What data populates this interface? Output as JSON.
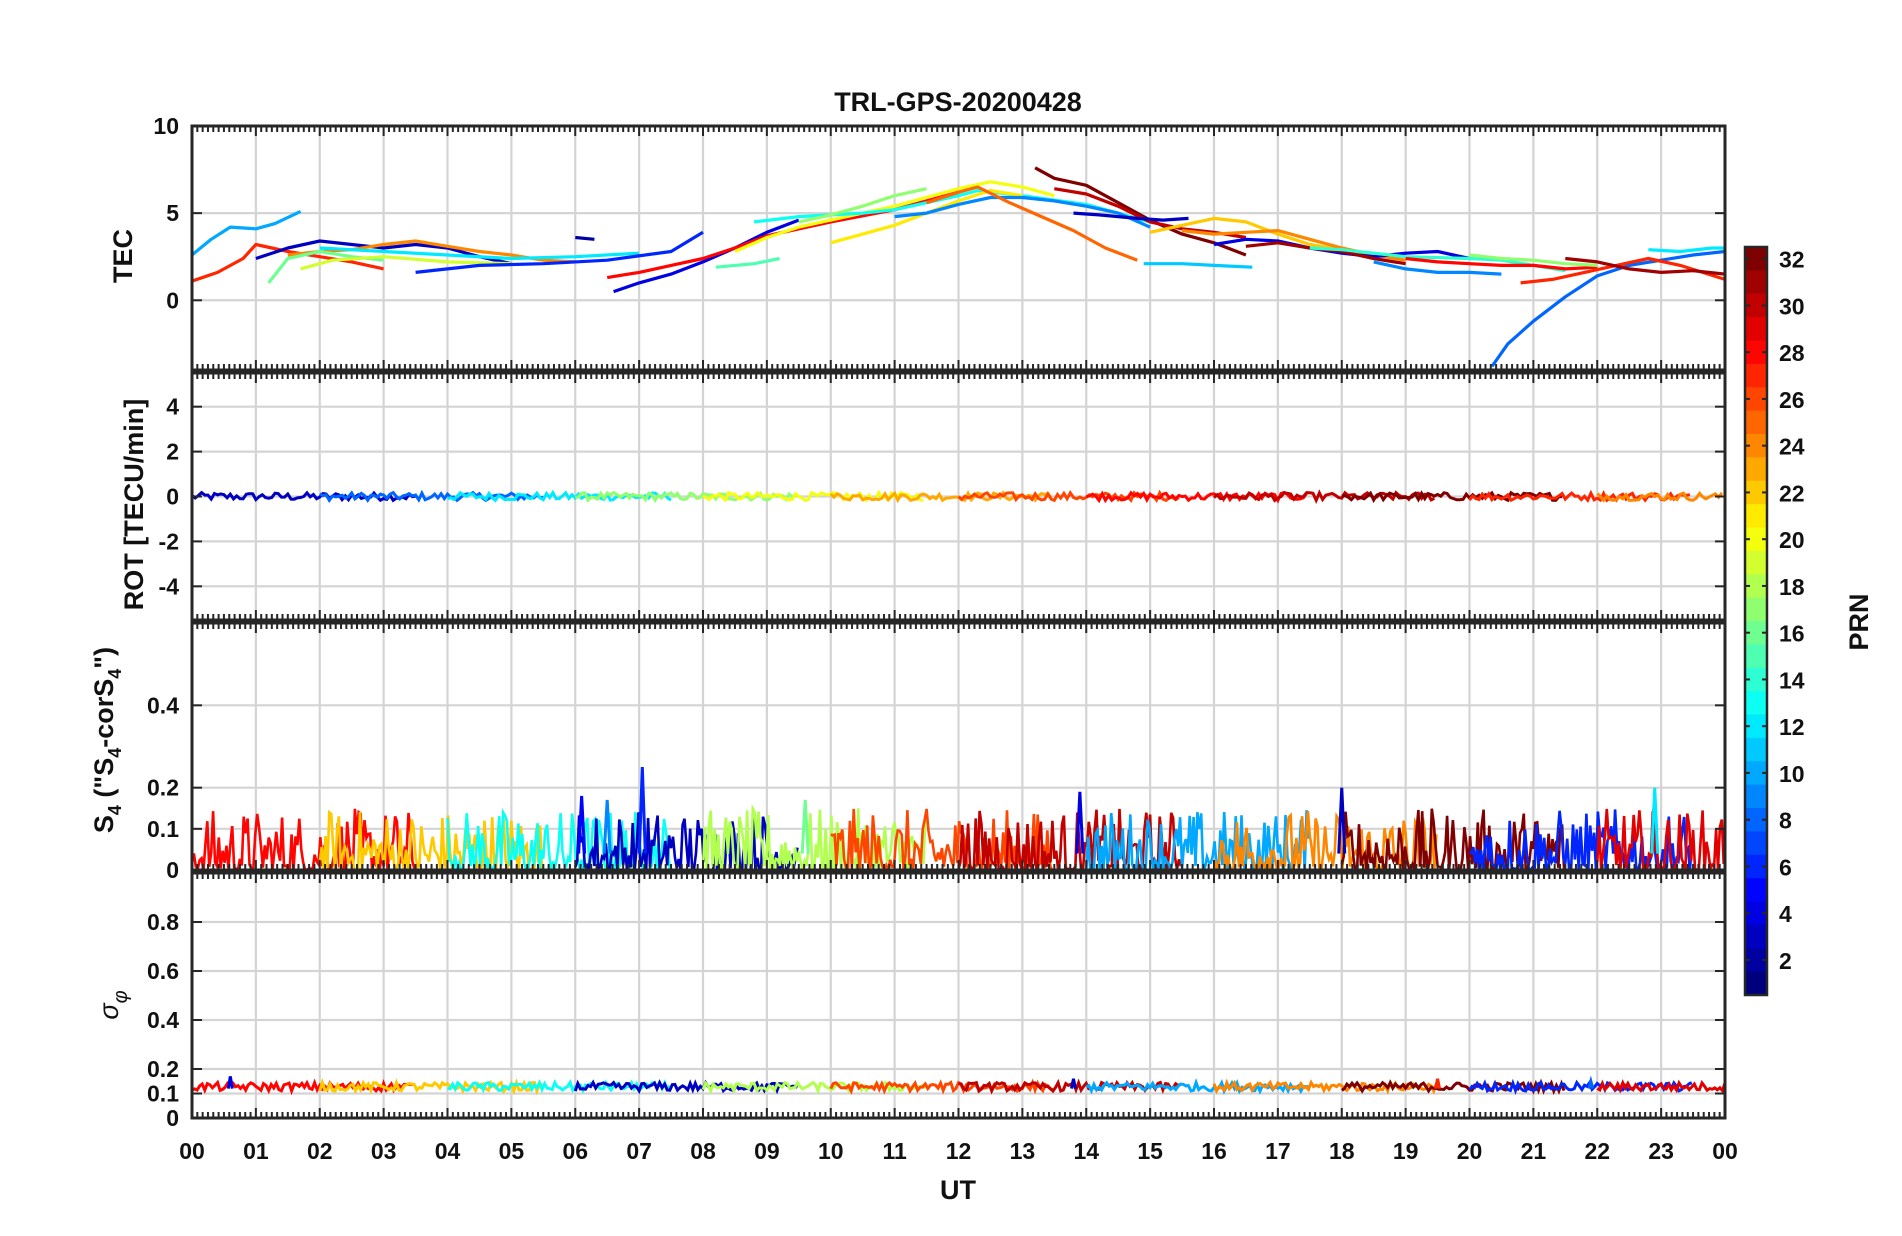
{
  "title": "TRL-GPS-20200428",
  "xlabel": "UT",
  "x_tick_labels": [
    "00",
    "01",
    "02",
    "03",
    "04",
    "05",
    "06",
    "07",
    "08",
    "09",
    "10",
    "11",
    "12",
    "13",
    "14",
    "15",
    "16",
    "17",
    "18",
    "19",
    "20",
    "21",
    "22",
    "23",
    "00"
  ],
  "colorbar": {
    "label": "PRN",
    "range": [
      1,
      32
    ],
    "tick_labels": [
      "32",
      "30",
      "28",
      "26",
      "24",
      "22",
      "20",
      "18",
      "16",
      "14",
      "12",
      "10",
      "8",
      "6",
      "4",
      "2"
    ],
    "colormap": "jet",
    "jet_stops": [
      "#00007f",
      "#0000ff",
      "#007fff",
      "#00ffff",
      "#7fff7f",
      "#ffff00",
      "#ff7f00",
      "#ff0000",
      "#7f0000"
    ]
  },
  "chart_data": [
    {
      "type": "line",
      "panel": "TEC",
      "ylabel": "TEC",
      "ylim": [
        -4,
        10
      ],
      "yticks": [
        0,
        5,
        10
      ],
      "ytick_labels": [
        "0",
        "5",
        "10"
      ],
      "x_unit": "hours UT",
      "series": [
        {
          "prn": 10,
          "x": [
            0.0,
            0.3,
            0.6,
            1.0,
            1.3,
            1.7
          ],
          "y": [
            2.6,
            3.5,
            4.2,
            4.1,
            4.4,
            5.1
          ]
        },
        {
          "prn": 27,
          "x": [
            0.0,
            0.4,
            0.8,
            1.0,
            1.5,
            2.0,
            2.5,
            3.0
          ],
          "y": [
            1.1,
            1.6,
            2.4,
            3.2,
            2.8,
            2.5,
            2.2,
            1.8
          ]
        },
        {
          "prn": 3,
          "x": [
            1.0,
            1.5,
            2.0,
            2.5,
            3.0,
            3.5,
            4.0,
            4.5,
            5.0
          ],
          "y": [
            2.4,
            3.0,
            3.4,
            3.2,
            3.0,
            3.2,
            3.0,
            2.5,
            2.1
          ]
        },
        {
          "prn": 24,
          "x": [
            1.5,
            2.0,
            2.5,
            3.0,
            3.5,
            4.0,
            4.5,
            5.0,
            5.5,
            6.0
          ],
          "y": [
            2.6,
            2.8,
            2.9,
            3.2,
            3.4,
            3.1,
            2.8,
            2.6,
            2.3,
            2.2
          ]
        },
        {
          "prn": 16,
          "x": [
            1.2,
            1.5,
            2.0,
            2.5,
            3.0
          ],
          "y": [
            1.0,
            2.4,
            2.8,
            2.5,
            2.3
          ]
        },
        {
          "prn": 19,
          "x": [
            1.7,
            2.2,
            3.0,
            4.0,
            5.0
          ],
          "y": [
            1.8,
            2.3,
            2.5,
            2.2,
            2.1
          ]
        },
        {
          "prn": 12,
          "x": [
            2.0,
            3.0,
            4.0,
            5.0,
            6.0,
            7.0
          ],
          "y": [
            3.0,
            2.8,
            2.6,
            2.4,
            2.5,
            2.7
          ]
        },
        {
          "prn": 6,
          "x": [
            3.5,
            4.5,
            5.5,
            6.5,
            7.5,
            8.0
          ],
          "y": [
            1.6,
            2.0,
            2.1,
            2.3,
            2.8,
            3.9
          ]
        },
        {
          "prn": 2,
          "x": [
            6.0,
            6.3
          ],
          "y": [
            3.6,
            3.5
          ]
        },
        {
          "prn": 4,
          "x": [
            6.6,
            7.0,
            7.5,
            8.0,
            8.5,
            9.0,
            9.5
          ],
          "y": [
            0.5,
            1.0,
            1.5,
            2.2,
            3.0,
            3.9,
            4.6
          ]
        },
        {
          "prn": 28,
          "x": [
            6.5,
            7.0,
            7.5,
            8.0,
            8.5,
            9.0,
            10.0,
            11.0,
            12.0
          ],
          "y": [
            1.3,
            1.6,
            2.0,
            2.4,
            3.0,
            3.7,
            4.5,
            5.2,
            6.2
          ]
        },
        {
          "prn": 15,
          "x": [
            8.2,
            8.8,
            9.2
          ],
          "y": [
            1.9,
            2.1,
            2.4
          ]
        },
        {
          "prn": 20,
          "x": [
            8.5,
            9.0,
            9.5,
            10.0,
            10.5,
            11.0,
            12.0,
            12.5,
            13.0,
            13.5
          ],
          "y": [
            2.8,
            3.6,
            4.2,
            4.6,
            5.0,
            5.4,
            6.4,
            6.8,
            6.5,
            6.0
          ]
        },
        {
          "prn": 13,
          "x": [
            8.8,
            9.5,
            10.0,
            10.5,
            11.0,
            11.5,
            12.0,
            12.3,
            13.0,
            14.0,
            15.0
          ],
          "y": [
            4.5,
            4.8,
            4.9,
            5.0,
            5.2,
            5.6,
            6.0,
            6.3,
            6.0,
            5.5,
            4.5
          ]
        },
        {
          "prn": 17,
          "x": [
            9.5,
            10.0,
            10.5,
            11.0,
            11.5
          ],
          "y": [
            4.5,
            4.9,
            5.4,
            6.0,
            6.4
          ]
        },
        {
          "prn": 21,
          "x": [
            10.0,
            10.5,
            11.0,
            11.5,
            12.0,
            12.5,
            13.0
          ],
          "y": [
            3.3,
            3.8,
            4.3,
            5.0,
            5.7,
            6.3,
            6.0
          ]
        },
        {
          "prn": 9,
          "x": [
            11.0,
            11.5,
            12.0,
            12.5,
            13.0,
            13.5,
            14.0,
            14.5,
            15.0
          ],
          "y": [
            4.8,
            5.0,
            5.5,
            5.9,
            5.9,
            5.7,
            5.4,
            5.0,
            4.2
          ]
        },
        {
          "prn": 25,
          "x": [
            11.5,
            12.0,
            12.3,
            12.8,
            13.3,
            13.8,
            14.3,
            14.8
          ],
          "y": [
            5.6,
            6.2,
            6.5,
            5.6,
            4.8,
            4.0,
            3.0,
            2.3
          ]
        },
        {
          "prn": 32,
          "x": [
            13.2,
            13.5,
            14.0,
            14.5,
            15.0,
            15.5,
            16.0,
            16.5
          ],
          "y": [
            7.6,
            7.0,
            6.6,
            5.6,
            4.6,
            3.8,
            3.3,
            2.6
          ]
        },
        {
          "prn": 30,
          "x": [
            13.5,
            14.0,
            14.5,
            15.0,
            15.5,
            16.0,
            16.5
          ],
          "y": [
            6.4,
            6.1,
            5.4,
            4.5,
            4.1,
            3.9,
            3.6
          ]
        },
        {
          "prn": 3,
          "x": [
            13.8,
            14.2,
            14.8,
            15.2,
            15.6
          ],
          "y": [
            5.0,
            4.9,
            4.7,
            4.6,
            4.7
          ]
        },
        {
          "prn": 11,
          "x": [
            14.9,
            15.5,
            16.0,
            16.6
          ],
          "y": [
            2.1,
            2.1,
            2.0,
            1.9
          ]
        },
        {
          "prn": 22,
          "x": [
            15.0,
            16.0,
            16.5,
            17.0,
            17.5,
            18.0
          ],
          "y": [
            3.9,
            4.7,
            4.5,
            3.8,
            3.2,
            2.9
          ]
        },
        {
          "prn": 24,
          "x": [
            15.5,
            16.0,
            16.5,
            17.0,
            17.5,
            18.0,
            18.5,
            19.0
          ],
          "y": [
            4.0,
            3.8,
            3.9,
            4.0,
            3.5,
            3.0,
            2.6,
            2.3
          ]
        },
        {
          "prn": 4,
          "x": [
            16.0,
            16.5,
            17.0,
            17.5,
            18.0,
            18.5,
            19.0,
            19.5,
            20.0
          ],
          "y": [
            3.2,
            3.5,
            3.4,
            3.0,
            2.7,
            2.5,
            2.7,
            2.8,
            2.4
          ]
        },
        {
          "prn": 31,
          "x": [
            16.5,
            17.0,
            17.5,
            18.0,
            18.5,
            19.0
          ],
          "y": [
            3.1,
            3.3,
            3.0,
            2.8,
            2.4,
            2.1
          ]
        },
        {
          "prn": 14,
          "x": [
            17.5,
            18.0,
            19.0,
            20.0,
            20.5,
            21.0,
            21.5
          ],
          "y": [
            3.0,
            2.9,
            2.5,
            2.4,
            2.3,
            2.0,
            1.7
          ]
        },
        {
          "prn": 9,
          "x": [
            18.5,
            19.0,
            19.5,
            20.0,
            20.5
          ],
          "y": [
            2.2,
            1.8,
            1.6,
            1.6,
            1.5
          ]
        },
        {
          "prn": 28,
          "x": [
            19.0,
            19.5,
            20.0,
            20.5,
            21.0,
            21.5,
            22.0
          ],
          "y": [
            2.4,
            2.2,
            2.1,
            2.0,
            2.0,
            1.8,
            1.9
          ]
        },
        {
          "prn": 17,
          "x": [
            20.0,
            20.5,
            21.0,
            21.5,
            22.0
          ],
          "y": [
            2.6,
            2.4,
            2.3,
            2.1,
            2.0
          ]
        },
        {
          "prn": 8,
          "x": [
            20.35,
            20.6,
            21.0,
            21.5,
            22.0,
            22.5,
            23.0,
            23.5,
            24.0
          ],
          "y": [
            -3.8,
            -2.5,
            -1.2,
            0.2,
            1.4,
            2.0,
            2.3,
            2.6,
            2.8
          ]
        },
        {
          "prn": 27,
          "x": [
            20.8,
            21.3,
            21.8,
            22.3,
            22.8,
            23.3,
            24.0
          ],
          "y": [
            1.0,
            1.2,
            1.6,
            2.0,
            2.4,
            2.0,
            1.2
          ]
        },
        {
          "prn": 31,
          "x": [
            21.5,
            22.0,
            22.5,
            23.0,
            23.5,
            24.0
          ],
          "y": [
            2.4,
            2.2,
            1.8,
            1.6,
            1.7,
            1.5
          ]
        },
        {
          "prn": 12,
          "x": [
            22.8,
            23.3,
            23.8,
            24.0
          ],
          "y": [
            2.9,
            2.8,
            3.0,
            3.0
          ]
        }
      ]
    },
    {
      "type": "line",
      "panel": "ROT",
      "ylabel": "ROT [TECU/min]",
      "ylim": [
        -5.5,
        5.5
      ],
      "yticks": [
        -4,
        -2,
        0,
        2,
        4
      ],
      "ytick_labels": [
        "-4",
        "-2",
        "0",
        "2",
        "4"
      ],
      "note": "All PRN traces lie near 0 TECU/min (within about ±0.3) for the whole day."
    },
    {
      "type": "line",
      "panel": "S4",
      "ylabel": "S4 (\"S4-corS4\")",
      "ylabel_parts": {
        "base": "S",
        "sub1": "4",
        "paren": " (\"S",
        "sub2": "4",
        "mid": "-corS",
        "sub3": "4",
        "end": "\")"
      },
      "ylim": [
        0,
        0.6
      ],
      "yticks": [
        0,
        0.1,
        0.2,
        0.4
      ],
      "ytick_labels": [
        "0",
        "0.1",
        "0.2",
        "0.4"
      ],
      "baseline_range": [
        0.0,
        0.15
      ],
      "spikes": [
        {
          "x": 6.1,
          "y": 0.18,
          "prn": 5
        },
        {
          "x": 6.5,
          "y": 0.17,
          "prn": 9
        },
        {
          "x": 7.05,
          "y": 0.25,
          "prn": 6
        },
        {
          "x": 9.6,
          "y": 0.17,
          "prn": 16
        },
        {
          "x": 13.9,
          "y": 0.19,
          "prn": 4
        },
        {
          "x": 18.0,
          "y": 0.2,
          "prn": 3
        },
        {
          "x": 22.9,
          "y": 0.2,
          "prn": 12
        }
      ]
    },
    {
      "type": "line",
      "panel": "sigma_phi",
      "ylabel": "σφ",
      "ylabel_parts": {
        "base": "σ",
        "sub": "φ"
      },
      "ylim": [
        0,
        1
      ],
      "yticks": [
        0,
        0.1,
        0.2,
        0.4,
        0.6,
        0.8
      ],
      "ytick_labels": [
        "0",
        "0.1",
        "0.2",
        "0.4",
        "0.6",
        "0.8"
      ],
      "baseline_range": [
        0.1,
        0.15
      ],
      "spikes": [
        {
          "x": 0.6,
          "y": 0.17,
          "prn": 4
        },
        {
          "x": 13.8,
          "y": 0.16,
          "prn": 3
        },
        {
          "x": 19.5,
          "y": 0.16,
          "prn": 27
        },
        {
          "x": 21.9,
          "y": 0.15,
          "prn": 8
        }
      ]
    }
  ]
}
